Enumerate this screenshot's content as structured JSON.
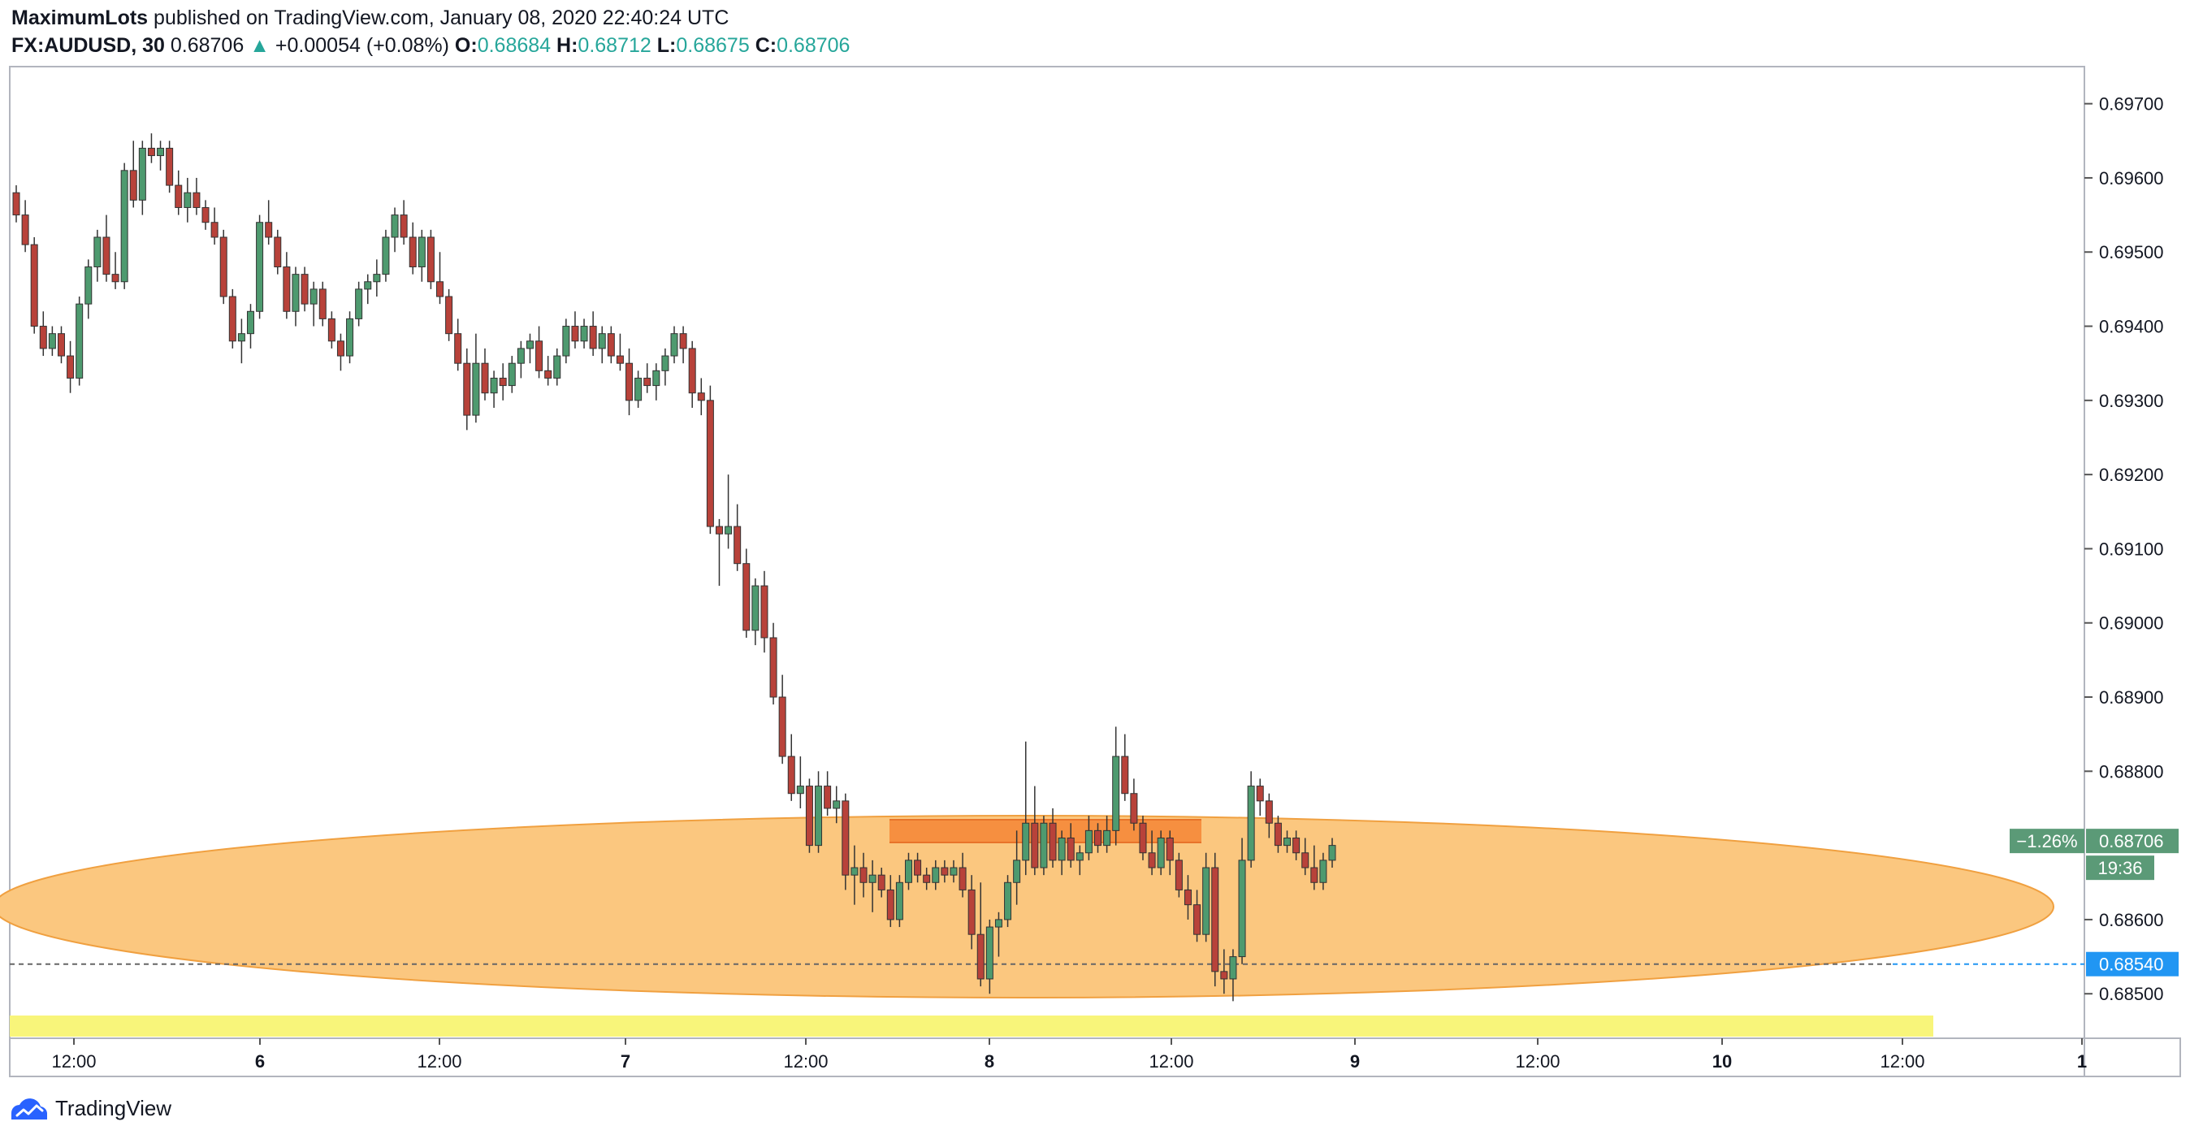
{
  "header": {
    "author": "MaximumLots",
    "published_on": "published on TradingView.com, January 08, 2020 22:40:24 UTC",
    "symbol": "FX:AUDUSD, 30",
    "last": "0.68706",
    "up_arrow": "▲",
    "change": "+0.00054 (+0.08%)",
    "o_label": "O:",
    "o_value": "0.68684",
    "h_label": "H:",
    "h_value": "0.68712",
    "l_label": "L:",
    "l_value": "0.68675",
    "c_label": "C:",
    "c_value": "0.68706"
  },
  "footer": {
    "brand": "TradingView",
    "logo_icon": "tradingview-logo-icon"
  },
  "colors": {
    "up": "#4e9a6f",
    "down": "#b8423a",
    "ellipse": "#fbc77f",
    "ellipse_stroke": "#f0a040",
    "zone": "#f58a3b",
    "yellow_band": "#f8f57a",
    "price_tag": "#5b9a77",
    "level_tag": "#2196f3"
  },
  "chart_data": {
    "type": "candlestick",
    "symbol": "FX:AUDUSD",
    "timeframe": "30",
    "ylim": [
      0.6844,
      0.6975
    ],
    "y_ticks": [
      "0.69700",
      "0.69600",
      "0.69500",
      "0.69400",
      "0.69300",
      "0.69200",
      "0.69100",
      "0.69000",
      "0.68900",
      "0.68800",
      "0.68600",
      "0.68500"
    ],
    "x_ticks": [
      "12:00",
      "6",
      "12:00",
      "7",
      "12:00",
      "8",
      "12:00",
      "9",
      "12:00",
      "10",
      "12:00",
      "1"
    ],
    "last_price": "0.68706",
    "last_change_pct": "−1.26%",
    "countdown": "19:36",
    "level_price": "0.68540",
    "candles": [
      [
        0.6958,
        0.6959,
        0.6954,
        0.6955
      ],
      [
        0.6955,
        0.6957,
        0.695,
        0.6951
      ],
      [
        0.6951,
        0.6952,
        0.6939,
        0.694
      ],
      [
        0.694,
        0.6942,
        0.6936,
        0.6937
      ],
      [
        0.6937,
        0.694,
        0.6936,
        0.6939
      ],
      [
        0.6939,
        0.694,
        0.6935,
        0.6936
      ],
      [
        0.6936,
        0.6938,
        0.6931,
        0.6933
      ],
      [
        0.6933,
        0.6944,
        0.6932,
        0.6943
      ],
      [
        0.6943,
        0.6949,
        0.6941,
        0.6948
      ],
      [
        0.6948,
        0.6953,
        0.6946,
        0.6952
      ],
      [
        0.6952,
        0.6955,
        0.6946,
        0.6947
      ],
      [
        0.6947,
        0.695,
        0.6945,
        0.6946
      ],
      [
        0.6946,
        0.6962,
        0.6945,
        0.6961
      ],
      [
        0.6961,
        0.6965,
        0.6956,
        0.6957
      ],
      [
        0.6957,
        0.6965,
        0.6955,
        0.6964
      ],
      [
        0.6964,
        0.6966,
        0.6962,
        0.6963
      ],
      [
        0.6963,
        0.6965,
        0.6961,
        0.6964
      ],
      [
        0.6964,
        0.6965,
        0.6958,
        0.6959
      ],
      [
        0.6959,
        0.6961,
        0.6955,
        0.6956
      ],
      [
        0.6956,
        0.696,
        0.6954,
        0.6958
      ],
      [
        0.6958,
        0.696,
        0.6955,
        0.6956
      ],
      [
        0.6956,
        0.6957,
        0.6953,
        0.6954
      ],
      [
        0.6954,
        0.6956,
        0.6951,
        0.6952
      ],
      [
        0.6952,
        0.6953,
        0.6943,
        0.6944
      ],
      [
        0.6944,
        0.6945,
        0.6937,
        0.6938
      ],
      [
        0.6938,
        0.6941,
        0.6935,
        0.6939
      ],
      [
        0.6939,
        0.6943,
        0.6937,
        0.6942
      ],
      [
        0.6942,
        0.6955,
        0.6941,
        0.6954
      ],
      [
        0.6954,
        0.6957,
        0.6951,
        0.6952
      ],
      [
        0.6952,
        0.6953,
        0.6947,
        0.6948
      ],
      [
        0.6948,
        0.695,
        0.6941,
        0.6942
      ],
      [
        0.6942,
        0.6948,
        0.694,
        0.6947
      ],
      [
        0.6947,
        0.6948,
        0.6942,
        0.6943
      ],
      [
        0.6943,
        0.6946,
        0.694,
        0.6945
      ],
      [
        0.6945,
        0.6946,
        0.694,
        0.6941
      ],
      [
        0.6941,
        0.6942,
        0.6937,
        0.6938
      ],
      [
        0.6938,
        0.6939,
        0.6934,
        0.6936
      ],
      [
        0.6936,
        0.6942,
        0.6935,
        0.6941
      ],
      [
        0.6941,
        0.6946,
        0.694,
        0.6945
      ],
      [
        0.6945,
        0.6947,
        0.6943,
        0.6946
      ],
      [
        0.6946,
        0.6949,
        0.6944,
        0.6947
      ],
      [
        0.6947,
        0.6953,
        0.6946,
        0.6952
      ],
      [
        0.6952,
        0.6956,
        0.695,
        0.6955
      ],
      [
        0.6955,
        0.6957,
        0.6951,
        0.6952
      ],
      [
        0.6952,
        0.6954,
        0.6947,
        0.6948
      ],
      [
        0.6948,
        0.6953,
        0.6946,
        0.6952
      ],
      [
        0.6952,
        0.6953,
        0.6945,
        0.6946
      ],
      [
        0.6946,
        0.695,
        0.6943,
        0.6944
      ],
      [
        0.6944,
        0.6945,
        0.6938,
        0.6939
      ],
      [
        0.6939,
        0.6941,
        0.6934,
        0.6935
      ],
      [
        0.6935,
        0.6937,
        0.6926,
        0.6928
      ],
      [
        0.6928,
        0.6939,
        0.6927,
        0.6935
      ],
      [
        0.6935,
        0.6937,
        0.693,
        0.6931
      ],
      [
        0.6931,
        0.6934,
        0.6929,
        0.6933
      ],
      [
        0.6933,
        0.6935,
        0.693,
        0.6932
      ],
      [
        0.6932,
        0.6936,
        0.6931,
        0.6935
      ],
      [
        0.6935,
        0.6938,
        0.6933,
        0.6937
      ],
      [
        0.6937,
        0.6939,
        0.6935,
        0.6938
      ],
      [
        0.6938,
        0.694,
        0.6933,
        0.6934
      ],
      [
        0.6934,
        0.6936,
        0.6932,
        0.6933
      ],
      [
        0.6933,
        0.6937,
        0.6932,
        0.6936
      ],
      [
        0.6936,
        0.6941,
        0.6935,
        0.694
      ],
      [
        0.694,
        0.6942,
        0.6937,
        0.6938
      ],
      [
        0.6938,
        0.6941,
        0.6937,
        0.694
      ],
      [
        0.694,
        0.6942,
        0.6936,
        0.6937
      ],
      [
        0.6937,
        0.694,
        0.6935,
        0.6939
      ],
      [
        0.6939,
        0.694,
        0.6935,
        0.6936
      ],
      [
        0.6936,
        0.6939,
        0.6934,
        0.6935
      ],
      [
        0.6935,
        0.6937,
        0.6928,
        0.693
      ],
      [
        0.693,
        0.6934,
        0.6929,
        0.6933
      ],
      [
        0.6933,
        0.6935,
        0.6931,
        0.6932
      ],
      [
        0.6932,
        0.6935,
        0.693,
        0.6934
      ],
      [
        0.6934,
        0.6937,
        0.6932,
        0.6936
      ],
      [
        0.6936,
        0.694,
        0.6935,
        0.6939
      ],
      [
        0.6939,
        0.694,
        0.6935,
        0.6937
      ],
      [
        0.6937,
        0.6938,
        0.6929,
        0.6931
      ],
      [
        0.6931,
        0.6933,
        0.6928,
        0.693
      ],
      [
        0.693,
        0.6932,
        0.6912,
        0.6913
      ],
      [
        0.6913,
        0.6914,
        0.6905,
        0.6912
      ],
      [
        0.6912,
        0.692,
        0.691,
        0.6913
      ],
      [
        0.6913,
        0.6916,
        0.6907,
        0.6908
      ],
      [
        0.6908,
        0.691,
        0.6898,
        0.6899
      ],
      [
        0.6899,
        0.6906,
        0.6897,
        0.6905
      ],
      [
        0.6905,
        0.6907,
        0.6896,
        0.6898
      ],
      [
        0.6898,
        0.69,
        0.6889,
        0.689
      ],
      [
        0.689,
        0.6893,
        0.6881,
        0.6882
      ],
      [
        0.6882,
        0.6885,
        0.6876,
        0.6877
      ],
      [
        0.6877,
        0.6882,
        0.6875,
        0.6878
      ],
      [
        0.6878,
        0.6879,
        0.6869,
        0.687
      ],
      [
        0.687,
        0.688,
        0.6869,
        0.6878
      ],
      [
        0.6878,
        0.688,
        0.6874,
        0.6875
      ],
      [
        0.6875,
        0.6878,
        0.6873,
        0.6876
      ],
      [
        0.6876,
        0.6877,
        0.6864,
        0.6866
      ],
      [
        0.6866,
        0.687,
        0.6862,
        0.6867
      ],
      [
        0.6867,
        0.6869,
        0.6863,
        0.6865
      ],
      [
        0.6865,
        0.6868,
        0.6861,
        0.6866
      ],
      [
        0.6866,
        0.6867,
        0.6863,
        0.6864
      ],
      [
        0.6864,
        0.6866,
        0.6859,
        0.686
      ],
      [
        0.686,
        0.6866,
        0.6859,
        0.6865
      ],
      [
        0.6865,
        0.6869,
        0.6864,
        0.6868
      ],
      [
        0.6868,
        0.6869,
        0.6865,
        0.6866
      ],
      [
        0.6866,
        0.6867,
        0.6864,
        0.6865
      ],
      [
        0.6865,
        0.6868,
        0.6864,
        0.6867
      ],
      [
        0.6867,
        0.6868,
        0.6865,
        0.6866
      ],
      [
        0.6866,
        0.6868,
        0.6865,
        0.6867
      ],
      [
        0.6867,
        0.6869,
        0.6863,
        0.6864
      ],
      [
        0.6864,
        0.6866,
        0.6856,
        0.6858
      ],
      [
        0.6858,
        0.6865,
        0.6851,
        0.6852
      ],
      [
        0.6852,
        0.686,
        0.685,
        0.6859
      ],
      [
        0.6859,
        0.6861,
        0.6855,
        0.686
      ],
      [
        0.686,
        0.6866,
        0.6859,
        0.6865
      ],
      [
        0.6865,
        0.6872,
        0.6862,
        0.6868
      ],
      [
        0.6868,
        0.6884,
        0.6866,
        0.6873
      ],
      [
        0.6873,
        0.6878,
        0.6866,
        0.6867
      ],
      [
        0.6867,
        0.6874,
        0.6866,
        0.6873
      ],
      [
        0.6873,
        0.6875,
        0.6867,
        0.6868
      ],
      [
        0.6868,
        0.6872,
        0.6866,
        0.6871
      ],
      [
        0.6871,
        0.6873,
        0.6867,
        0.6868
      ],
      [
        0.6868,
        0.687,
        0.6866,
        0.6869
      ],
      [
        0.6869,
        0.6874,
        0.6868,
        0.6872
      ],
      [
        0.6872,
        0.6873,
        0.6869,
        0.687
      ],
      [
        0.687,
        0.6874,
        0.6869,
        0.6872
      ],
      [
        0.6872,
        0.6886,
        0.687,
        0.6882
      ],
      [
        0.6882,
        0.6885,
        0.6876,
        0.6877
      ],
      [
        0.6877,
        0.6879,
        0.6872,
        0.6873
      ],
      [
        0.6873,
        0.6874,
        0.6868,
        0.6869
      ],
      [
        0.6869,
        0.6872,
        0.6866,
        0.6867
      ],
      [
        0.6867,
        0.6872,
        0.6866,
        0.6871
      ],
      [
        0.6871,
        0.6872,
        0.6866,
        0.6868
      ],
      [
        0.6868,
        0.6869,
        0.6863,
        0.6864
      ],
      [
        0.6864,
        0.6866,
        0.686,
        0.6862
      ],
      [
        0.6862,
        0.6864,
        0.6857,
        0.6858
      ],
      [
        0.6858,
        0.6869,
        0.6857,
        0.6867
      ],
      [
        0.6867,
        0.6869,
        0.6851,
        0.6853
      ],
      [
        0.6853,
        0.6856,
        0.685,
        0.6852
      ],
      [
        0.6852,
        0.6856,
        0.6849,
        0.6855
      ],
      [
        0.6855,
        0.6871,
        0.6854,
        0.6868
      ],
      [
        0.6868,
        0.688,
        0.6867,
        0.6878
      ],
      [
        0.6878,
        0.6879,
        0.6874,
        0.6876
      ],
      [
        0.6876,
        0.6877,
        0.6871,
        0.6873
      ],
      [
        0.6873,
        0.6874,
        0.6869,
        0.687
      ],
      [
        0.687,
        0.6872,
        0.6869,
        0.6871
      ],
      [
        0.6871,
        0.6872,
        0.6868,
        0.6869
      ],
      [
        0.6869,
        0.6871,
        0.6866,
        0.6867
      ],
      [
        0.6867,
        0.687,
        0.6864,
        0.6865
      ],
      [
        0.6865,
        0.6869,
        0.6864,
        0.6868
      ],
      [
        0.6868,
        0.6871,
        0.6867,
        0.687
      ]
    ]
  }
}
